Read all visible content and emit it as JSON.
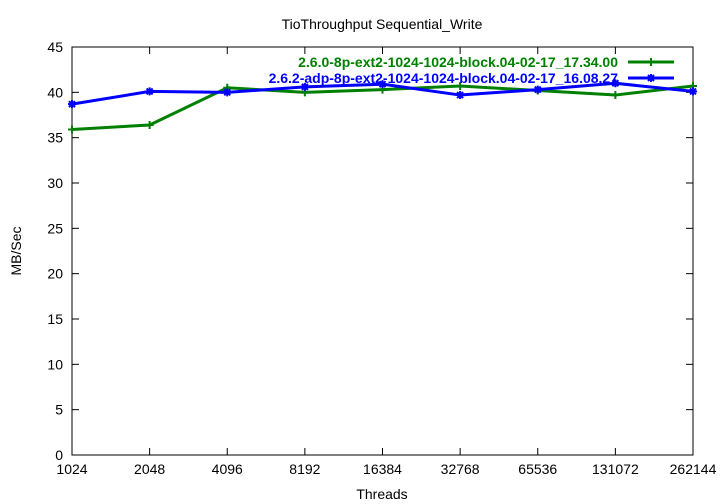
{
  "chart_data": {
    "type": "line",
    "title": "TioThroughput Sequential_Write",
    "xlabel": "Threads",
    "ylabel": "MB/Sec",
    "x_scale": "log2",
    "categories": [
      "1024",
      "2048",
      "4096",
      "8192",
      "16384",
      "32768",
      "65536",
      "131072",
      "262144"
    ],
    "y_ticks": [
      "0",
      "5",
      "10",
      "15",
      "20",
      "25",
      "30",
      "35",
      "40",
      "45"
    ],
    "ylim": [
      0,
      45
    ],
    "grid": false,
    "legend_position": "top-right",
    "series": [
      {
        "name": "2.6.0-8p-ext2-1024-1024-block.04-02-17_17.34.00",
        "color": "#008000",
        "marker": "plus",
        "values": [
          35.9,
          36.4,
          40.5,
          40.0,
          40.3,
          40.7,
          40.2,
          39.7,
          40.7
        ]
      },
      {
        "name": "2.6.2-adp-8p-ext2-1024-1024-block.04-02-17_16.08.27",
        "color": "#0000ff",
        "marker": "star",
        "values": [
          38.7,
          40.1,
          40.0,
          40.6,
          40.9,
          39.7,
          40.3,
          41.0,
          40.1
        ]
      }
    ]
  }
}
